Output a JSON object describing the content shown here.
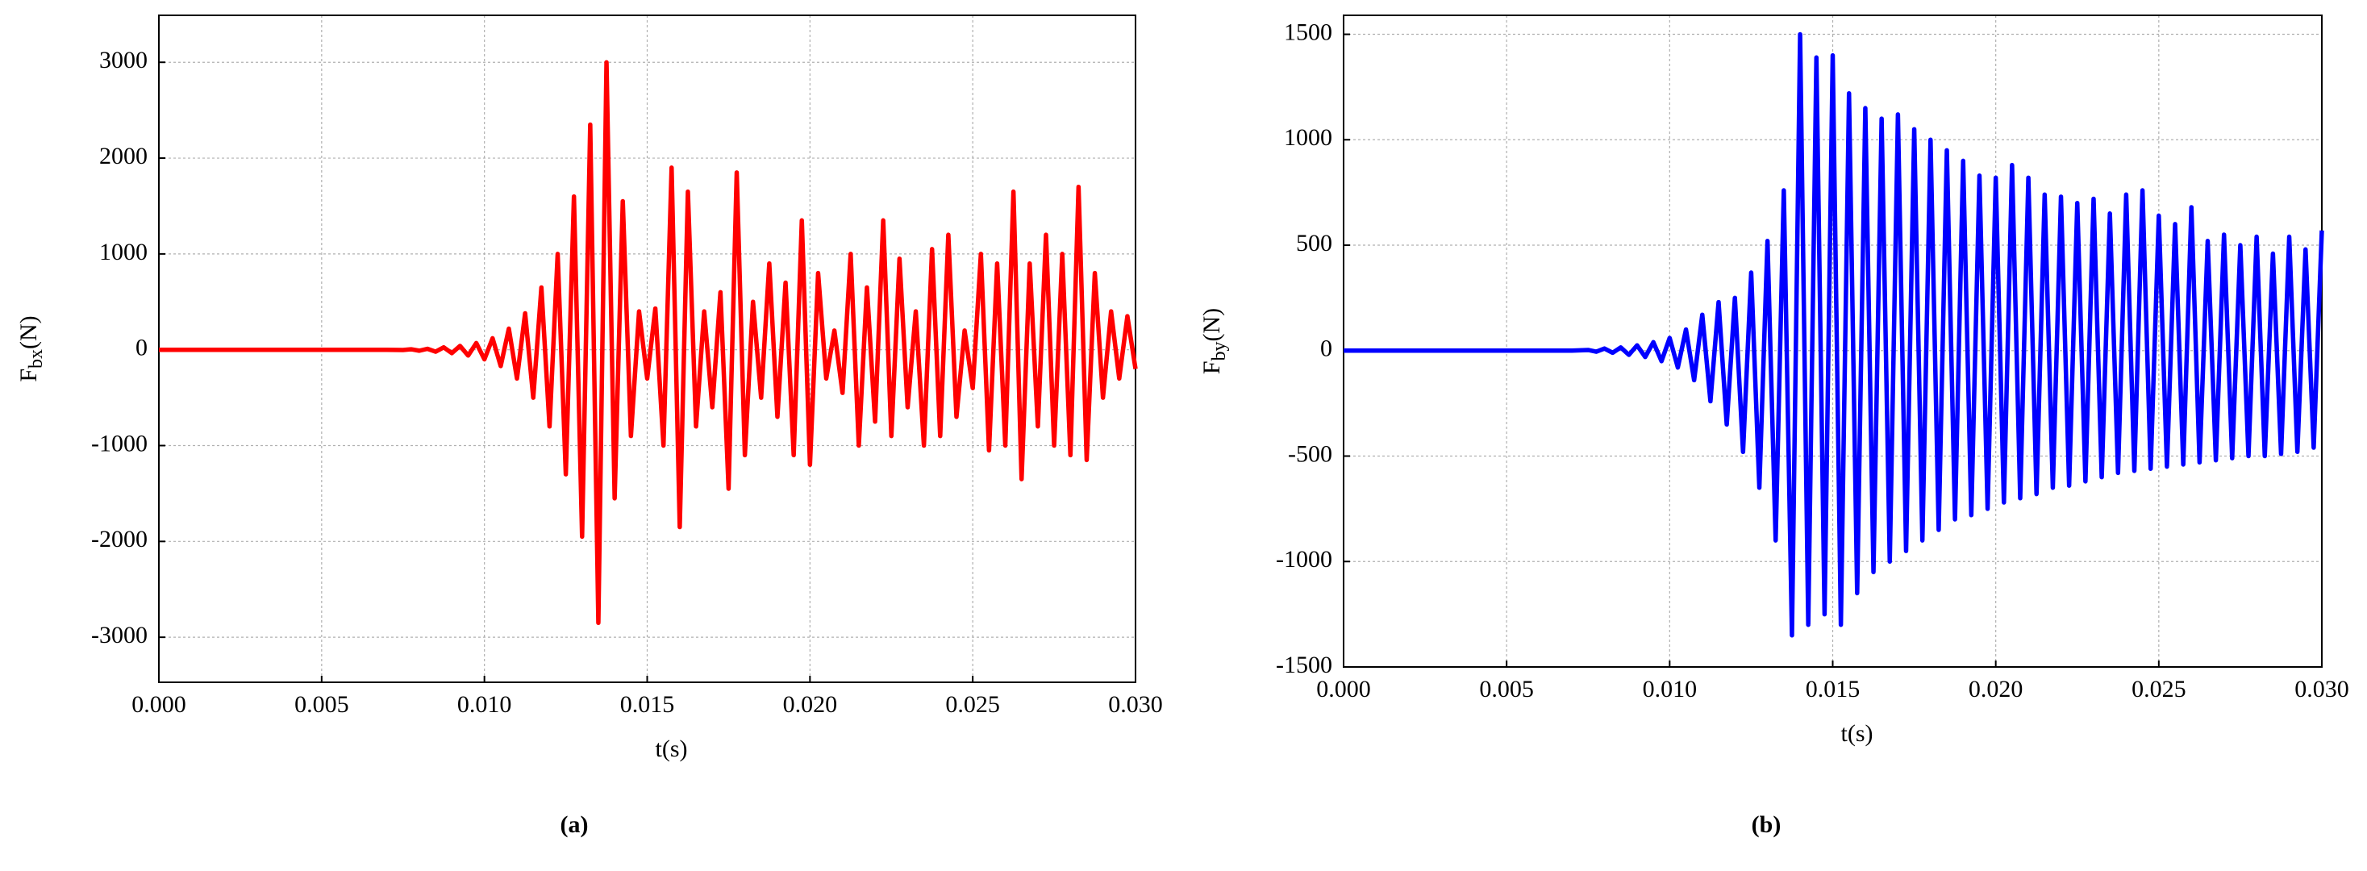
{
  "chart_data": [
    {
      "type": "line",
      "ylabel": "F",
      "ylabel_sub": "bx",
      "ylabel_suffix": "(N)",
      "xlabel": "t(s)",
      "panel_label": "(a)",
      "color": "#ff0000",
      "grid": true,
      "x": [
        0,
        0.006,
        0.007,
        0.0075,
        0.00775,
        0.008,
        0.00825,
        0.0085,
        0.00875,
        0.009,
        0.00925,
        0.0095,
        0.00975,
        0.01,
        0.01025,
        0.0105,
        0.01075,
        0.011,
        0.01125,
        0.0115,
        0.01175,
        0.012,
        0.01225,
        0.0125,
        0.01275,
        0.013,
        0.01325,
        0.0135,
        0.01375,
        0.014,
        0.01425,
        0.0145,
        0.01475,
        0.015,
        0.01525,
        0.0155,
        0.01575,
        0.016,
        0.01625,
        0.0165,
        0.01675,
        0.017,
        0.01725,
        0.0175,
        0.01775,
        0.018,
        0.01825,
        0.0185,
        0.01875,
        0.019,
        0.01925,
        0.0195,
        0.01975,
        0.02,
        0.02025,
        0.0205,
        0.02075,
        0.021,
        0.02125,
        0.0215,
        0.02175,
        0.022,
        0.02225,
        0.0225,
        0.02275,
        0.023,
        0.02325,
        0.0235,
        0.02375,
        0.024,
        0.02425,
        0.0245,
        0.02475,
        0.025,
        0.02525,
        0.0255,
        0.02575,
        0.026,
        0.02625,
        0.0265,
        0.02675,
        0.027,
        0.02725,
        0.0275,
        0.02775,
        0.028,
        0.02825,
        0.0285,
        0.02875,
        0.029,
        0.02925,
        0.0295,
        0.02975,
        0.03
      ],
      "values": [
        0,
        0,
        0,
        -3,
        5,
        -10,
        10,
        -20,
        25,
        -35,
        40,
        -60,
        70,
        -100,
        120,
        -170,
        220,
        -300,
        380,
        -500,
        650,
        -800,
        1000,
        -1300,
        1600,
        -1950,
        2350,
        -2850,
        3000,
        -1550,
        1550,
        -900,
        400,
        -300,
        430,
        -1000,
        1900,
        -1850,
        1650,
        -800,
        400,
        -600,
        600,
        -1450,
        1850,
        -1100,
        500,
        -500,
        900,
        -700,
        700,
        -1100,
        1350,
        -1200,
        800,
        -300,
        200,
        -450,
        1000,
        -1000,
        650,
        -750,
        1350,
        -900,
        950,
        -600,
        400,
        -1000,
        1050,
        -900,
        1200,
        -700,
        200,
        -400,
        1000,
        -1050,
        900,
        -1000,
        1650,
        -1350,
        900,
        -800,
        1200,
        -1000,
        1000,
        -1100,
        1700,
        -1150,
        800,
        -500,
        400,
        -300,
        350,
        -200
      ],
      "xlim": [
        0,
        0.03
      ],
      "ylim": [
        -3470,
        3490
      ],
      "xticks": [
        {
          "value": 0,
          "label": "0.000"
        },
        0.005,
        {
          "value": 0.01,
          "label": "0.010"
        },
        0.015,
        {
          "value": 0.02,
          "label": "0.020"
        },
        0.025,
        {
          "value": 0.03,
          "label": "0.030"
        }
      ],
      "yticks": [
        -3000,
        -2000,
        -1000,
        0,
        1000,
        2000,
        3000
      ]
    },
    {
      "type": "line",
      "ylabel": "F",
      "ylabel_sub": "by",
      "ylabel_suffix": "(N)",
      "xlabel": "t(s)",
      "panel_label": "(b)",
      "color": "#0000ff",
      "grid": true,
      "x": [
        0,
        0.006,
        0.007,
        0.0075,
        0.00775,
        0.008,
        0.00825,
        0.0085,
        0.00875,
        0.009,
        0.00925,
        0.0095,
        0.00975,
        0.01,
        0.01025,
        0.0105,
        0.01075,
        0.011,
        0.01125,
        0.0115,
        0.01175,
        0.012,
        0.01225,
        0.0125,
        0.01275,
        0.013,
        0.01325,
        0.0135,
        0.01375,
        0.014,
        0.01425,
        0.0145,
        0.01475,
        0.015,
        0.01525,
        0.0155,
        0.01575,
        0.016,
        0.01625,
        0.0165,
        0.01675,
        0.017,
        0.01725,
        0.0175,
        0.01775,
        0.018,
        0.01825,
        0.0185,
        0.01875,
        0.019,
        0.01925,
        0.0195,
        0.01975,
        0.02,
        0.02025,
        0.0205,
        0.02075,
        0.021,
        0.02125,
        0.0215,
        0.02175,
        0.022,
        0.02225,
        0.0225,
        0.02275,
        0.023,
        0.02325,
        0.0235,
        0.02375,
        0.024,
        0.02425,
        0.0245,
        0.02475,
        0.025,
        0.02525,
        0.0255,
        0.02575,
        0.026,
        0.02625,
        0.0265,
        0.02675,
        0.027,
        0.02725,
        0.0275,
        0.02775,
        0.028,
        0.02825,
        0.0285,
        0.02875,
        0.029,
        0.02925,
        0.0295,
        0.02975,
        0.03
      ],
      "values": [
        0,
        0,
        0,
        3,
        -5,
        10,
        -10,
        15,
        -20,
        25,
        -30,
        40,
        -50,
        60,
        -80,
        100,
        -140,
        170,
        -240,
        230,
        -350,
        250,
        -480,
        370,
        -650,
        520,
        -900,
        760,
        -1350,
        1500,
        -1300,
        1390,
        -1250,
        1400,
        -1300,
        1220,
        -1150,
        1150,
        -1050,
        1100,
        -1000,
        1120,
        -950,
        1050,
        -900,
        1000,
        -850,
        950,
        -800,
        900,
        -780,
        830,
        -750,
        820,
        -720,
        880,
        -700,
        820,
        -680,
        740,
        -650,
        730,
        -640,
        700,
        -620,
        720,
        -600,
        650,
        -580,
        740,
        -570,
        760,
        -560,
        640,
        -550,
        600,
        -540,
        680,
        -530,
        520,
        -520,
        550,
        -510,
        500,
        -500,
        540,
        -500,
        460,
        -490,
        540,
        -480,
        480,
        -460,
        570
      ],
      "xlim": [
        0,
        0.03
      ],
      "ylim": [
        -1500,
        1590
      ],
      "xticks": [
        {
          "value": 0,
          "label": "0.000"
        },
        0.005,
        {
          "value": 0.01,
          "label": "0.010"
        },
        0.015,
        {
          "value": 0.02,
          "label": "0.020"
        },
        0.025,
        {
          "value": 0.03,
          "label": "0.030"
        }
      ],
      "yticks": [
        -1500,
        -1000,
        -500,
        0,
        500,
        1000,
        1500
      ]
    }
  ]
}
